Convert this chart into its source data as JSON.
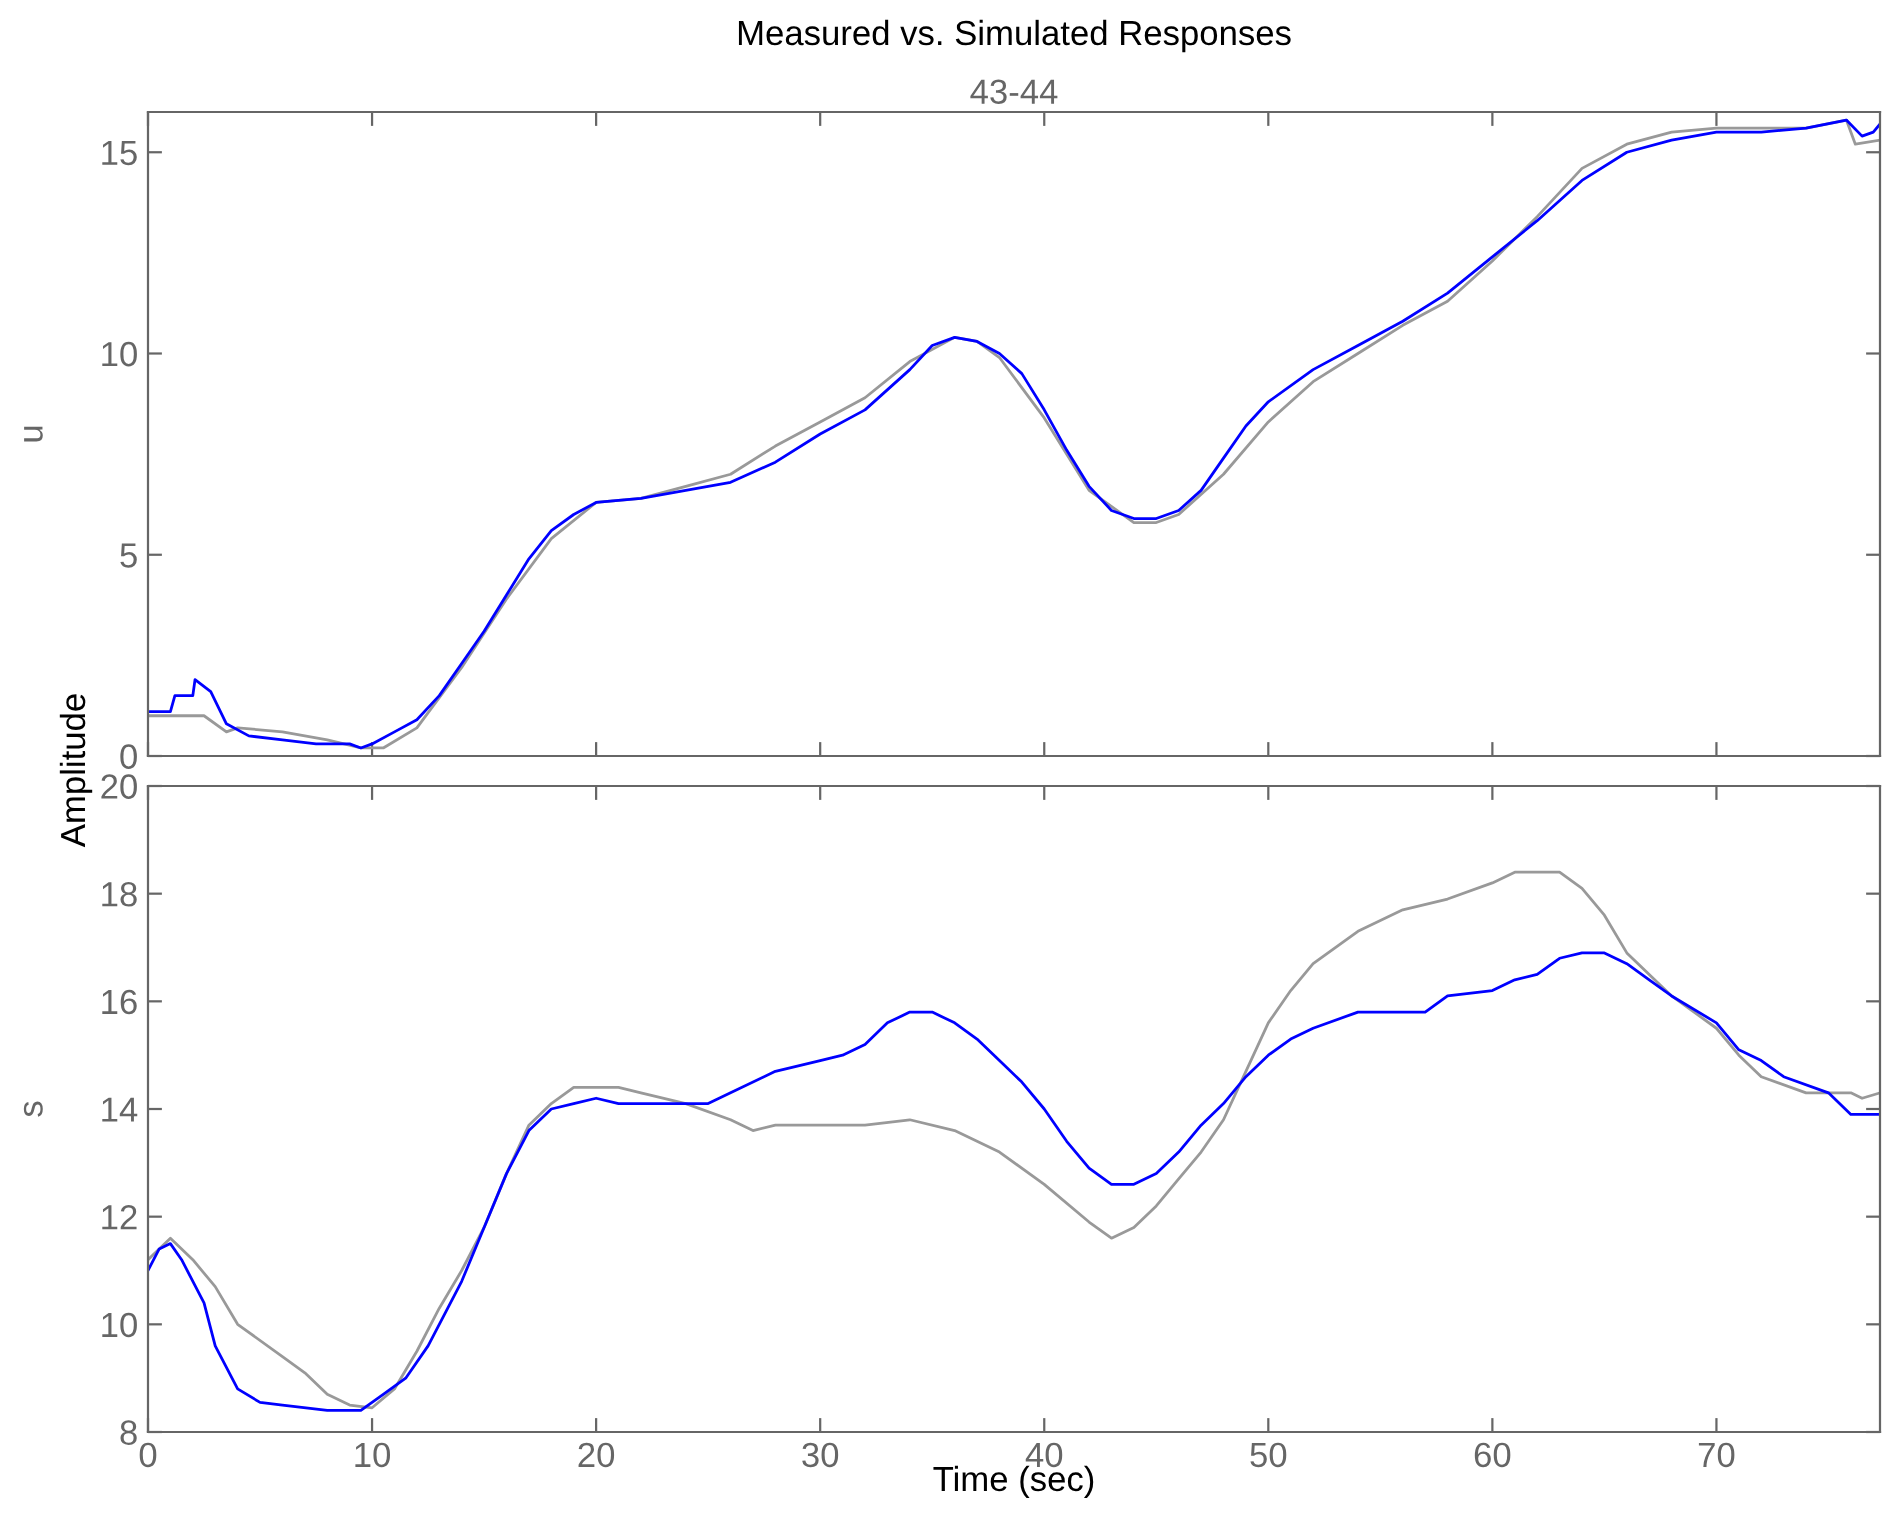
{
  "chart_data": [
    {
      "type": "line",
      "title": "Measured vs. Simulated Responses",
      "subtitle": "43-44",
      "ylabel": "u",
      "annotations": [
        "Amplitude"
      ],
      "xlim": [
        0,
        77.3
      ],
      "xticks": [
        0,
        10,
        20,
        30,
        40,
        50,
        60,
        70
      ],
      "ylim": [
        0,
        16
      ],
      "yticks": [
        0,
        5,
        10,
        15
      ],
      "tick_labels": "y",
      "grid": false,
      "legend": false,
      "series": [
        {
          "color": "#999999",
          "x": [
            0,
            1.5,
            2.5,
            3.5,
            4,
            6,
            8,
            9.5,
            10.5,
            12,
            14,
            16,
            18,
            20,
            22,
            24,
            26,
            28,
            30,
            32,
            34,
            36,
            37,
            38,
            40,
            42,
            44,
            45,
            46,
            48,
            50,
            52,
            54,
            56,
            58,
            60,
            62,
            64,
            66,
            68,
            70,
            72,
            74,
            75.8,
            76.2,
            77.3
          ],
          "values": [
            1.0,
            1.0,
            1.0,
            0.6,
            0.7,
            0.6,
            0.4,
            0.2,
            0.2,
            0.7,
            2.2,
            3.9,
            5.4,
            6.3,
            6.4,
            6.7,
            7.0,
            7.7,
            8.3,
            8.9,
            9.8,
            10.4,
            10.3,
            9.9,
            8.4,
            6.6,
            5.8,
            5.8,
            6.0,
            7.0,
            8.3,
            9.3,
            10.0,
            10.7,
            11.3,
            12.3,
            13.4,
            14.6,
            15.2,
            15.5,
            15.6,
            15.6,
            15.6,
            15.8,
            15.2,
            15.3
          ]
        },
        {
          "color": "#0000ff",
          "x": [
            0,
            1,
            1.2,
            2,
            2.1,
            2.8,
            3.5,
            4.5,
            6,
            7.5,
            9,
            9.5,
            10,
            11,
            12,
            13,
            14,
            15,
            16,
            17,
            18,
            19,
            20,
            22,
            24,
            26,
            28,
            30,
            32,
            34,
            35,
            36,
            37,
            38,
            39,
            40,
            41,
            42,
            43,
            44,
            45,
            46,
            47,
            48,
            49,
            50,
            52,
            54,
            56,
            58,
            60,
            62,
            64,
            66,
            68,
            70,
            72,
            74,
            75.8,
            76.5,
            77,
            77.3
          ],
          "values": [
            1.1,
            1.1,
            1.5,
            1.5,
            1.9,
            1.6,
            0.8,
            0.5,
            0.4,
            0.3,
            0.3,
            0.2,
            0.3,
            0.6,
            0.9,
            1.5,
            2.3,
            3.1,
            4.0,
            4.9,
            5.6,
            6.0,
            6.3,
            6.4,
            6.6,
            6.8,
            7.3,
            8.0,
            8.6,
            9.6,
            10.2,
            10.4,
            10.3,
            10.0,
            9.5,
            8.6,
            7.6,
            6.7,
            6.1,
            5.9,
            5.9,
            6.1,
            6.6,
            7.4,
            8.2,
            8.8,
            9.6,
            10.2,
            10.8,
            11.5,
            12.4,
            13.3,
            14.3,
            15.0,
            15.3,
            15.5,
            15.5,
            15.6,
            15.8,
            15.4,
            15.5,
            15.7
          ]
        }
      ]
    },
    {
      "type": "line",
      "xlabel": "Time (sec)",
      "ylabel": "s",
      "xlim": [
        0,
        77.3
      ],
      "xticks": [
        0,
        10,
        20,
        30,
        40,
        50,
        60,
        70
      ],
      "ylim": [
        8,
        20
      ],
      "yticks": [
        8,
        10,
        12,
        14,
        16,
        18,
        20
      ],
      "grid": false,
      "legend": false,
      "series": [
        {
          "color": "#999999",
          "x": [
            0,
            1,
            2,
            3,
            4,
            6,
            7,
            8,
            9,
            10,
            11,
            12,
            13,
            14,
            15,
            16,
            17,
            18,
            19,
            20,
            21,
            22,
            24,
            26,
            27,
            28,
            30,
            32,
            34,
            36,
            38,
            40,
            42,
            43,
            44,
            45,
            46,
            47,
            48,
            49,
            50,
            51,
            52,
            54,
            56,
            58,
            60,
            61,
            63,
            64,
            65,
            66,
            68,
            70,
            71,
            72,
            74,
            76,
            76.5,
            77.3
          ],
          "values": [
            11.2,
            11.6,
            11.2,
            10.7,
            10.0,
            9.4,
            9.1,
            8.7,
            8.5,
            8.45,
            8.8,
            9.5,
            10.3,
            11.0,
            11.8,
            12.8,
            13.7,
            14.1,
            14.4,
            14.4,
            14.4,
            14.3,
            14.1,
            13.8,
            13.6,
            13.7,
            13.7,
            13.7,
            13.8,
            13.6,
            13.2,
            12.6,
            11.9,
            11.6,
            11.8,
            12.2,
            12.7,
            13.2,
            13.8,
            14.7,
            15.6,
            16.2,
            16.7,
            17.3,
            17.7,
            17.9,
            18.2,
            18.4,
            18.4,
            18.1,
            17.6,
            16.9,
            16.1,
            15.5,
            15.0,
            14.6,
            14.3,
            14.3,
            14.2,
            14.3
          ]
        },
        {
          "color": "#0000ff",
          "x": [
            0,
            0.5,
            1,
            1.5,
            2.5,
            3,
            4,
            5,
            6,
            8,
            9,
            9.5,
            10.5,
            11.5,
            12.5,
            14,
            15,
            16,
            17,
            18,
            19,
            20,
            21,
            22,
            24,
            25,
            26,
            28,
            30,
            31,
            32,
            33,
            34,
            35,
            36,
            37,
            38,
            39,
            40,
            41,
            42,
            43,
            44,
            45,
            46,
            47,
            48,
            49,
            50,
            51,
            52,
            54,
            56,
            57,
            58,
            60,
            61,
            62,
            63,
            64,
            65,
            66,
            67,
            68,
            70,
            71,
            72,
            73,
            75,
            76,
            77.3
          ],
          "values": [
            11.0,
            11.4,
            11.5,
            11.2,
            10.4,
            9.6,
            8.8,
            8.55,
            8.5,
            8.4,
            8.4,
            8.4,
            8.7,
            9.0,
            9.6,
            10.8,
            11.8,
            12.8,
            13.6,
            14.0,
            14.1,
            14.2,
            14.1,
            14.1,
            14.1,
            14.1,
            14.3,
            14.7,
            14.9,
            15.0,
            15.2,
            15.6,
            15.8,
            15.8,
            15.6,
            15.3,
            14.9,
            14.5,
            14.0,
            13.4,
            12.9,
            12.6,
            12.6,
            12.8,
            13.2,
            13.7,
            14.1,
            14.6,
            15.0,
            15.3,
            15.5,
            15.8,
            15.8,
            15.8,
            16.1,
            16.2,
            16.4,
            16.5,
            16.8,
            16.9,
            16.9,
            16.7,
            16.4,
            16.1,
            15.6,
            15.1,
            14.9,
            14.6,
            14.3,
            13.9,
            13.9
          ]
        }
      ]
    }
  ]
}
